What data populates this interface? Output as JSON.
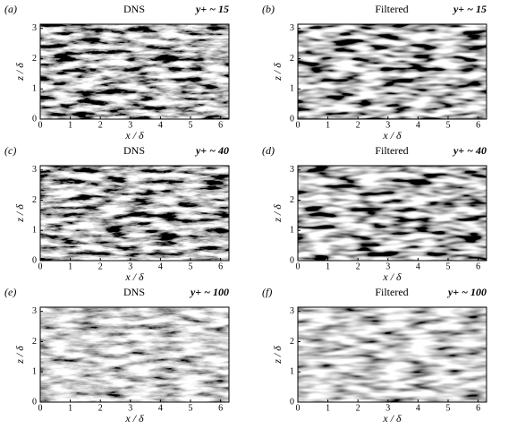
{
  "chart_data": [
    {
      "type": "contour",
      "panel": "(a)",
      "title": "DNS",
      "annotation": "y+ ~ 15",
      "xlabel": "x / δ",
      "ylabel": "z / δ",
      "xlim": [
        0,
        6.28
      ],
      "ylim": [
        0,
        3.14
      ],
      "xticks": [
        0,
        1,
        2,
        3,
        4,
        5,
        6
      ],
      "yticks": [
        0,
        1,
        2,
        3
      ]
    },
    {
      "type": "contour",
      "panel": "(b)",
      "title": "Filtered",
      "annotation": "y+ ~ 15",
      "xlabel": "x / δ",
      "ylabel": "z / δ",
      "xlim": [
        0,
        6.28
      ],
      "ylim": [
        0,
        3.14
      ],
      "xticks": [
        0,
        1,
        2,
        3,
        4,
        5,
        6
      ],
      "yticks": [
        0,
        1,
        2,
        3
      ]
    },
    {
      "type": "contour",
      "panel": "(c)",
      "title": "DNS",
      "annotation": "y+ ~ 40",
      "xlabel": "x / δ",
      "ylabel": "z / δ",
      "xlim": [
        0,
        6.28
      ],
      "ylim": [
        0,
        3.14
      ],
      "xticks": [
        0,
        1,
        2,
        3,
        4,
        5,
        6
      ],
      "yticks": [
        0,
        1,
        2,
        3
      ]
    },
    {
      "type": "contour",
      "panel": "(d)",
      "title": "Filtered",
      "annotation": "y+ ~ 40",
      "xlabel": "x / δ",
      "ylabel": "z / δ",
      "xlim": [
        0,
        6.28
      ],
      "ylim": [
        0,
        3.14
      ],
      "xticks": [
        0,
        1,
        2,
        3,
        4,
        5,
        6
      ],
      "yticks": [
        0,
        1,
        2,
        3
      ]
    },
    {
      "type": "contour",
      "panel": "(e)",
      "title": "DNS",
      "annotation": "y+ ~ 100",
      "xlabel": "x / δ",
      "ylabel": "z / δ",
      "xlim": [
        0,
        6.28
      ],
      "ylim": [
        0,
        3.14
      ],
      "xticks": [
        0,
        1,
        2,
        3,
        4,
        5,
        6
      ],
      "yticks": [
        0,
        1,
        2,
        3
      ]
    },
    {
      "type": "contour",
      "panel": "(f)",
      "title": "Filtered",
      "annotation": "y+ ~ 100",
      "xlabel": "x / δ",
      "ylabel": "z / δ",
      "xlim": [
        0,
        6.28
      ],
      "ylim": [
        0,
        3.14
      ],
      "xticks": [
        0,
        1,
        2,
        3,
        4,
        5,
        6
      ],
      "yticks": [
        0,
        1,
        2,
        3
      ]
    }
  ]
}
